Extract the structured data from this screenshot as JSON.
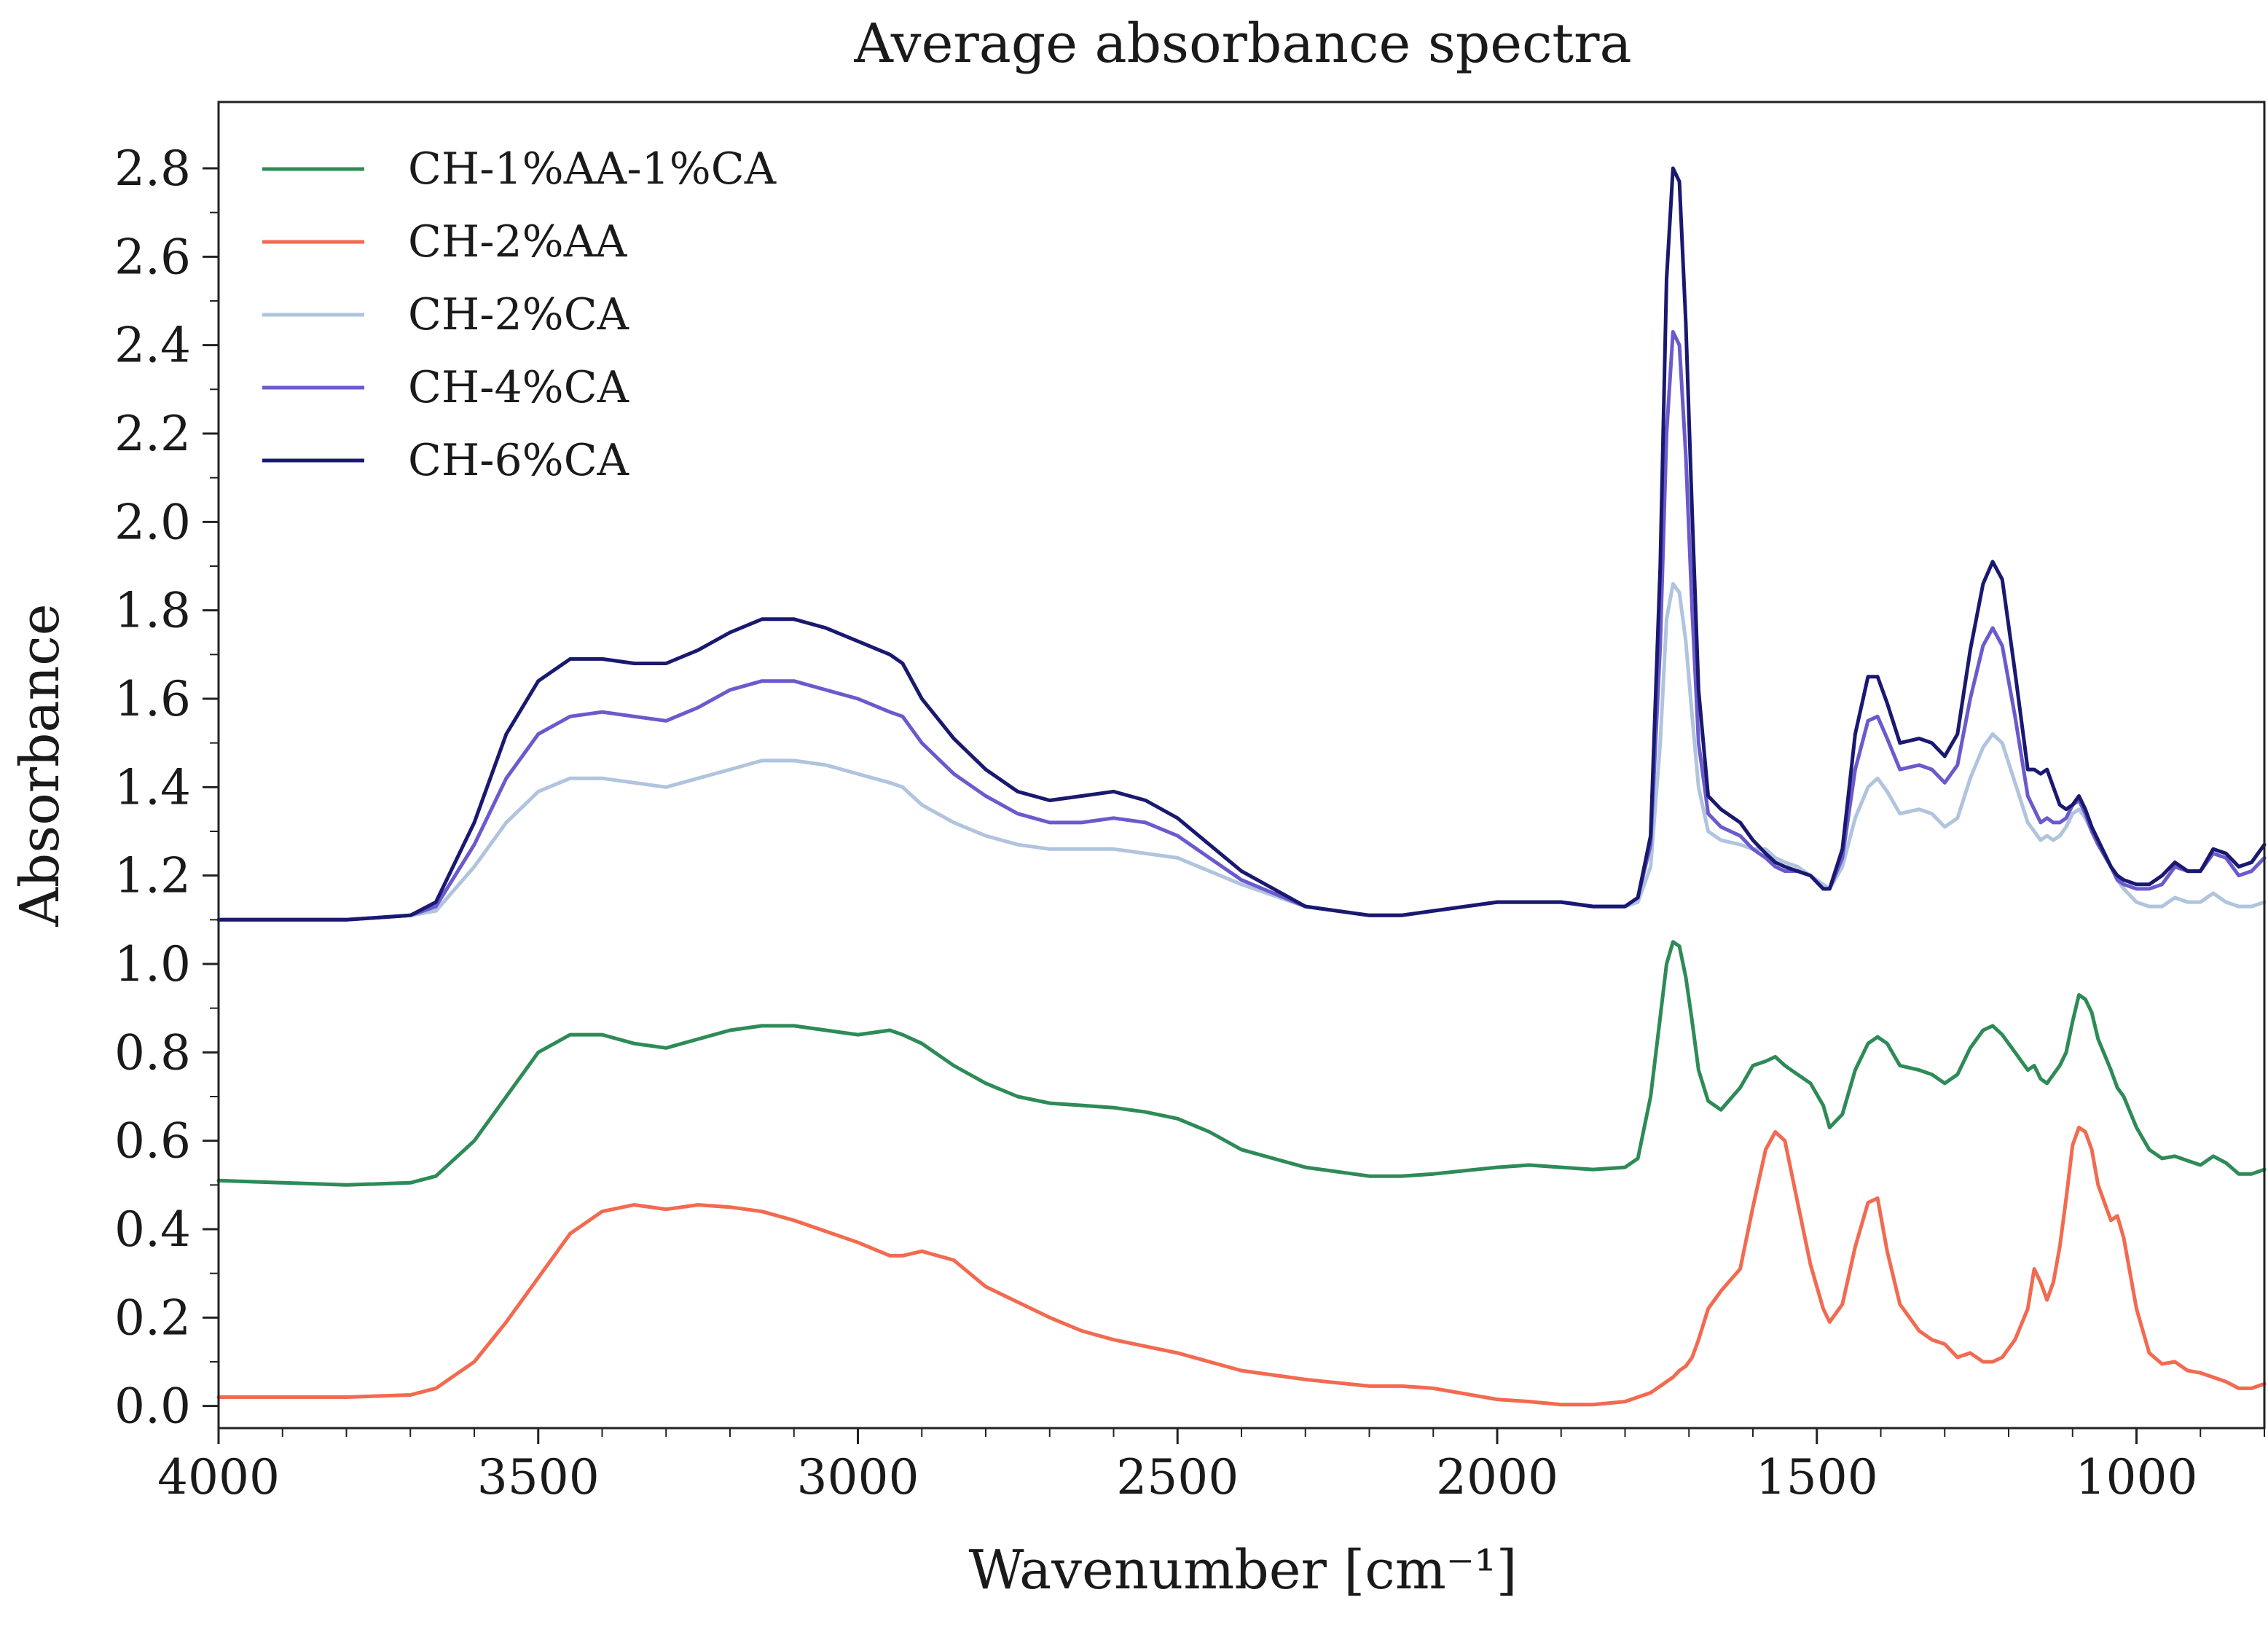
{
  "chart_data": {
    "type": "line",
    "title": "Average absorbance spectra",
    "xlabel": "Wavenumber [cm⁻¹]",
    "ylabel": "Absorbance",
    "xlim": [
      4000,
      800
    ],
    "ylim": [
      -0.05,
      2.95
    ],
    "x_reversed": true,
    "xticks": [
      4000,
      3500,
      3000,
      2500,
      2000,
      1500,
      1000
    ],
    "xtick_labels": [
      "4000",
      "3500",
      "3000",
      "2500",
      "2000",
      "1500",
      "1000"
    ],
    "yticks": [
      0.0,
      0.2,
      0.4,
      0.6,
      0.8,
      1.0,
      1.2,
      1.4,
      1.6,
      1.8,
      2.0,
      2.2,
      2.4,
      2.6,
      2.8
    ],
    "ytick_labels": [
      "0.0",
      "0.2",
      "0.4",
      "0.6",
      "0.8",
      "1.0",
      "1.2",
      "1.4",
      "1.6",
      "1.8",
      "2.0",
      "2.2",
      "2.4",
      "2.6",
      "2.8"
    ],
    "legend_position": "top-left",
    "grid": false,
    "x": [
      4000,
      3900,
      3800,
      3700,
      3660,
      3600,
      3550,
      3500,
      3450,
      3400,
      3350,
      3300,
      3250,
      3200,
      3150,
      3100,
      3050,
      3000,
      2950,
      2930,
      2900,
      2850,
      2800,
      2750,
      2700,
      2650,
      2600,
      2550,
      2500,
      2450,
      2400,
      2300,
      2200,
      2150,
      2100,
      2000,
      1950,
      1900,
      1850,
      1800,
      1780,
      1760,
      1745,
      1735,
      1725,
      1715,
      1705,
      1695,
      1685,
      1670,
      1650,
      1620,
      1600,
      1580,
      1565,
      1550,
      1530,
      1510,
      1490,
      1480,
      1460,
      1440,
      1420,
      1405,
      1390,
      1370,
      1340,
      1320,
      1300,
      1280,
      1260,
      1240,
      1225,
      1210,
      1190,
      1170,
      1160,
      1150,
      1140,
      1130,
      1120,
      1110,
      1100,
      1090,
      1080,
      1070,
      1060,
      1040,
      1030,
      1020,
      1000,
      980,
      960,
      940,
      920,
      900,
      880,
      860,
      840,
      820,
      800
    ],
    "series": [
      {
        "name": "CH-1%AA-1%CA",
        "color": "#2e8b57",
        "values": [
          0.51,
          0.505,
          0.5,
          0.505,
          0.52,
          0.6,
          0.7,
          0.8,
          0.84,
          0.84,
          0.82,
          0.81,
          0.83,
          0.85,
          0.86,
          0.86,
          0.85,
          0.84,
          0.85,
          0.84,
          0.82,
          0.77,
          0.73,
          0.7,
          0.685,
          0.68,
          0.675,
          0.665,
          0.65,
          0.62,
          0.58,
          0.54,
          0.52,
          0.52,
          0.525,
          0.54,
          0.545,
          0.54,
          0.535,
          0.54,
          0.56,
          0.7,
          0.88,
          1.0,
          1.05,
          1.04,
          0.97,
          0.87,
          0.76,
          0.69,
          0.67,
          0.72,
          0.77,
          0.78,
          0.79,
          0.77,
          0.75,
          0.73,
          0.68,
          0.63,
          0.66,
          0.76,
          0.82,
          0.835,
          0.82,
          0.77,
          0.76,
          0.75,
          0.73,
          0.75,
          0.81,
          0.85,
          0.86,
          0.84,
          0.8,
          0.76,
          0.77,
          0.74,
          0.73,
          0.75,
          0.77,
          0.8,
          0.87,
          0.93,
          0.92,
          0.89,
          0.83,
          0.76,
          0.72,
          0.7,
          0.63,
          0.58,
          0.56,
          0.565,
          0.555,
          0.545,
          0.565,
          0.55,
          0.525,
          0.525,
          0.535
        ]
      },
      {
        "name": "CH-2%AA",
        "color": "#f26a50",
        "values": [
          0.02,
          0.02,
          0.02,
          0.025,
          0.04,
          0.1,
          0.19,
          0.29,
          0.39,
          0.44,
          0.455,
          0.445,
          0.455,
          0.45,
          0.44,
          0.42,
          0.395,
          0.37,
          0.34,
          0.34,
          0.35,
          0.33,
          0.27,
          0.235,
          0.2,
          0.17,
          0.15,
          0.135,
          0.12,
          0.1,
          0.08,
          0.06,
          0.045,
          0.045,
          0.04,
          0.015,
          0.01,
          0.003,
          0.003,
          0.01,
          0.02,
          0.03,
          0.045,
          0.055,
          0.065,
          0.08,
          0.09,
          0.11,
          0.15,
          0.22,
          0.26,
          0.31,
          0.45,
          0.58,
          0.62,
          0.6,
          0.46,
          0.32,
          0.22,
          0.19,
          0.23,
          0.36,
          0.46,
          0.47,
          0.35,
          0.23,
          0.17,
          0.15,
          0.14,
          0.11,
          0.12,
          0.1,
          0.1,
          0.11,
          0.15,
          0.22,
          0.31,
          0.28,
          0.24,
          0.28,
          0.36,
          0.47,
          0.59,
          0.63,
          0.62,
          0.58,
          0.5,
          0.42,
          0.43,
          0.38,
          0.22,
          0.12,
          0.095,
          0.1,
          0.08,
          0.075,
          0.065,
          0.055,
          0.04,
          0.04,
          0.05
        ]
      },
      {
        "name": "CH-2%CA",
        "color": "#b0c4de",
        "values": [
          1.1,
          1.1,
          1.1,
          1.11,
          1.12,
          1.22,
          1.32,
          1.39,
          1.42,
          1.42,
          1.41,
          1.4,
          1.42,
          1.44,
          1.46,
          1.46,
          1.45,
          1.43,
          1.41,
          1.4,
          1.36,
          1.32,
          1.29,
          1.27,
          1.26,
          1.26,
          1.26,
          1.25,
          1.24,
          1.21,
          1.18,
          1.13,
          1.11,
          1.11,
          1.12,
          1.14,
          1.14,
          1.14,
          1.13,
          1.13,
          1.14,
          1.22,
          1.5,
          1.78,
          1.86,
          1.84,
          1.73,
          1.56,
          1.4,
          1.3,
          1.28,
          1.27,
          1.26,
          1.26,
          1.24,
          1.23,
          1.22,
          1.2,
          1.18,
          1.17,
          1.22,
          1.33,
          1.4,
          1.42,
          1.39,
          1.34,
          1.35,
          1.34,
          1.31,
          1.33,
          1.42,
          1.49,
          1.52,
          1.5,
          1.41,
          1.32,
          1.3,
          1.28,
          1.29,
          1.28,
          1.29,
          1.31,
          1.34,
          1.35,
          1.33,
          1.3,
          1.27,
          1.22,
          1.19,
          1.17,
          1.14,
          1.13,
          1.13,
          1.15,
          1.14,
          1.14,
          1.16,
          1.14,
          1.13,
          1.13,
          1.14
        ]
      },
      {
        "name": "CH-4%CA",
        "color": "#6a5acd",
        "values": [
          1.1,
          1.1,
          1.1,
          1.11,
          1.13,
          1.27,
          1.42,
          1.52,
          1.56,
          1.57,
          1.56,
          1.55,
          1.58,
          1.62,
          1.64,
          1.64,
          1.62,
          1.6,
          1.57,
          1.56,
          1.5,
          1.43,
          1.38,
          1.34,
          1.32,
          1.32,
          1.33,
          1.32,
          1.29,
          1.24,
          1.19,
          1.13,
          1.11,
          1.11,
          1.12,
          1.14,
          1.14,
          1.14,
          1.13,
          1.13,
          1.15,
          1.27,
          1.72,
          2.2,
          2.43,
          2.4,
          2.15,
          1.8,
          1.5,
          1.34,
          1.31,
          1.29,
          1.26,
          1.24,
          1.22,
          1.21,
          1.21,
          1.2,
          1.17,
          1.17,
          1.24,
          1.44,
          1.55,
          1.56,
          1.51,
          1.44,
          1.45,
          1.44,
          1.41,
          1.45,
          1.6,
          1.72,
          1.76,
          1.72,
          1.56,
          1.38,
          1.35,
          1.32,
          1.33,
          1.32,
          1.32,
          1.33,
          1.36,
          1.37,
          1.34,
          1.3,
          1.27,
          1.22,
          1.19,
          1.18,
          1.17,
          1.17,
          1.18,
          1.22,
          1.21,
          1.21,
          1.25,
          1.24,
          1.2,
          1.21,
          1.24
        ]
      },
      {
        "name": "CH-6%CA",
        "color": "#191970",
        "values": [
          1.1,
          1.1,
          1.1,
          1.11,
          1.14,
          1.32,
          1.52,
          1.64,
          1.69,
          1.69,
          1.68,
          1.68,
          1.71,
          1.75,
          1.78,
          1.78,
          1.76,
          1.73,
          1.7,
          1.68,
          1.6,
          1.51,
          1.44,
          1.39,
          1.37,
          1.38,
          1.39,
          1.37,
          1.33,
          1.27,
          1.21,
          1.13,
          1.11,
          1.11,
          1.12,
          1.14,
          1.14,
          1.14,
          1.13,
          1.13,
          1.15,
          1.29,
          1.9,
          2.55,
          2.8,
          2.77,
          2.45,
          2.02,
          1.62,
          1.38,
          1.35,
          1.32,
          1.28,
          1.25,
          1.23,
          1.22,
          1.21,
          1.2,
          1.17,
          1.17,
          1.26,
          1.52,
          1.65,
          1.65,
          1.59,
          1.5,
          1.51,
          1.5,
          1.47,
          1.52,
          1.71,
          1.86,
          1.91,
          1.87,
          1.66,
          1.44,
          1.44,
          1.43,
          1.44,
          1.4,
          1.36,
          1.35,
          1.36,
          1.38,
          1.35,
          1.31,
          1.28,
          1.22,
          1.2,
          1.19,
          1.18,
          1.18,
          1.2,
          1.23,
          1.21,
          1.21,
          1.26,
          1.25,
          1.22,
          1.23,
          1.27
        ]
      }
    ]
  }
}
